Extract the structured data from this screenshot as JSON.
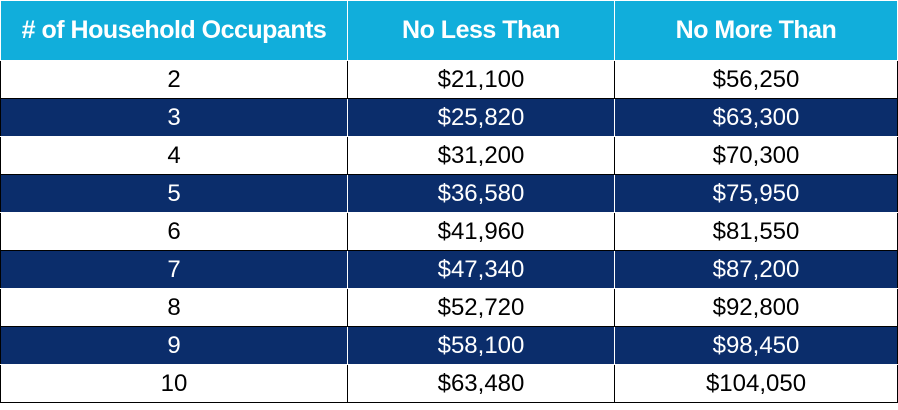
{
  "table": {
    "headers": [
      "# of Household Occupants",
      "No Less Than",
      "No More Than"
    ],
    "rows": [
      [
        "2",
        "$21,100",
        "$56,250"
      ],
      [
        "3",
        "$25,820",
        "$63,300"
      ],
      [
        "4",
        "$31,200",
        "$70,300"
      ],
      [
        "5",
        "$36,580",
        "$75,950"
      ],
      [
        "6",
        "$41,960",
        "$81,550"
      ],
      [
        "7",
        "$47,340",
        "$87,200"
      ],
      [
        "8",
        "$52,720",
        "$92,800"
      ],
      [
        "9",
        "$58,100",
        "$98,450"
      ],
      [
        "10",
        "$63,480",
        "$104,050"
      ]
    ]
  },
  "colors": {
    "header_bg": "#11aedb",
    "dark_row_bg": "#0b2d6b",
    "light_row_bg": "#ffffff"
  }
}
